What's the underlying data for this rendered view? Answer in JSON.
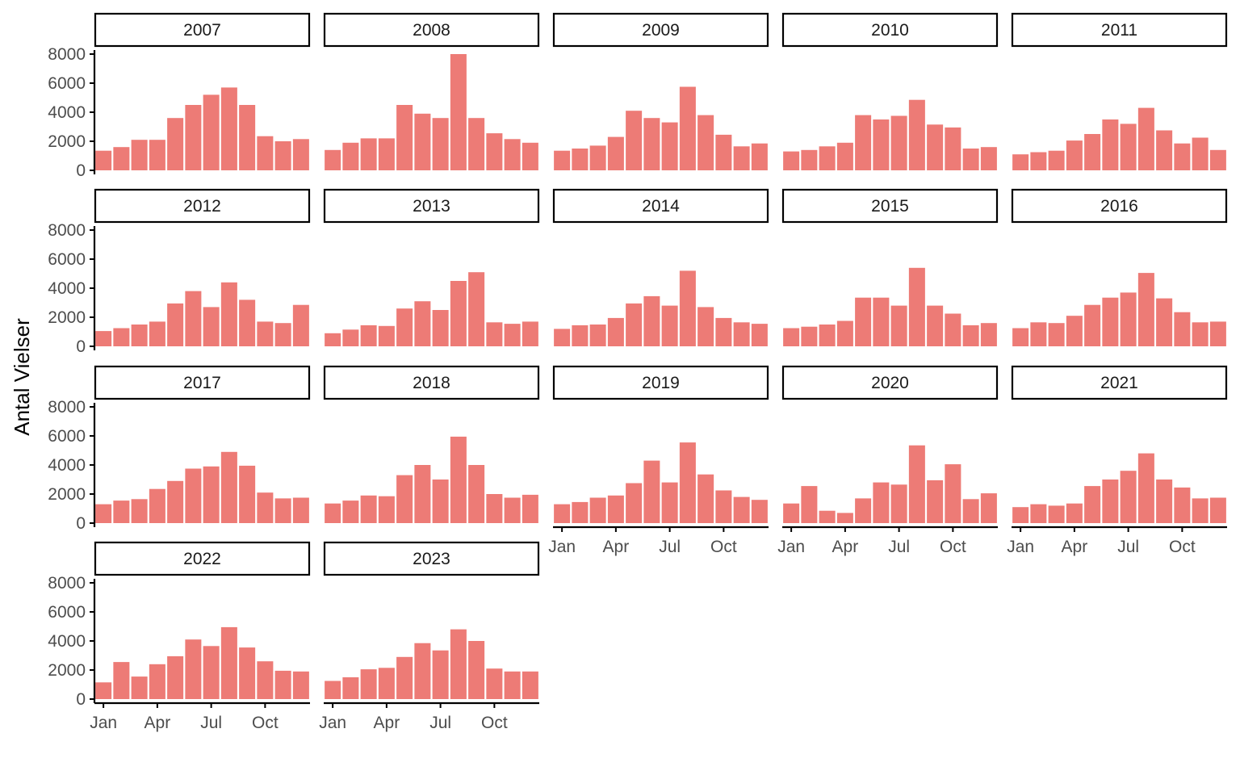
{
  "chart_data": {
    "type": "bar",
    "facet_by": "year",
    "layout": {
      "ncol": 5,
      "nrow": 4
    },
    "ylabel": "Antal Vielser",
    "xlabel": "",
    "ylim": [
      0,
      8000
    ],
    "yticks": [
      0,
      2000,
      4000,
      6000,
      8000
    ],
    "x_tick_labels": [
      "Jan",
      "Apr",
      "Jul",
      "Oct"
    ],
    "x_tick_months": [
      1,
      4,
      7,
      10
    ],
    "grid": false,
    "colors": {
      "bar": "#ED7B76",
      "axis": "#000000"
    },
    "panels": [
      {
        "label": "2007",
        "values": [
          1350,
          1600,
          2100,
          2100,
          3600,
          4500,
          5200,
          5700,
          4500,
          2350,
          2000,
          2150
        ]
      },
      {
        "label": "2008",
        "values": [
          1400,
          1900,
          2200,
          2200,
          4500,
          3900,
          3600,
          8000,
          3600,
          2550,
          2150,
          1900
        ]
      },
      {
        "label": "2009",
        "values": [
          1350,
          1500,
          1700,
          2300,
          4100,
          3600,
          3300,
          5750,
          3800,
          2450,
          1650,
          1850
        ]
      },
      {
        "label": "2010",
        "values": [
          1300,
          1400,
          1650,
          1900,
          3800,
          3500,
          3750,
          4850,
          3150,
          2950,
          1500,
          1600
        ]
      },
      {
        "label": "2011",
        "values": [
          1100,
          1250,
          1350,
          2050,
          2500,
          3500,
          3200,
          4300,
          2750,
          1850,
          2250,
          1400
        ]
      },
      {
        "label": "2012",
        "values": [
          1050,
          1250,
          1500,
          1700,
          2950,
          3800,
          2700,
          4400,
          3200,
          1700,
          1600,
          2850
        ]
      },
      {
        "label": "2013",
        "values": [
          900,
          1150,
          1450,
          1400,
          2600,
          3100,
          2500,
          4500,
          5100,
          1650,
          1550,
          1700
        ]
      },
      {
        "label": "2014",
        "values": [
          1200,
          1450,
          1500,
          1950,
          2950,
          3450,
          2800,
          5200,
          2700,
          1950,
          1650,
          1550
        ]
      },
      {
        "label": "2015",
        "values": [
          1250,
          1350,
          1500,
          1750,
          3350,
          3350,
          2800,
          5400,
          2800,
          2250,
          1450,
          1600
        ]
      },
      {
        "label": "2016",
        "values": [
          1250,
          1650,
          1600,
          2100,
          2850,
          3350,
          3700,
          5050,
          3300,
          2350,
          1650,
          1700
        ]
      },
      {
        "label": "2017",
        "values": [
          1300,
          1550,
          1650,
          2350,
          2900,
          3750,
          3900,
          4900,
          3950,
          2100,
          1700,
          1750
        ]
      },
      {
        "label": "2018",
        "values": [
          1350,
          1550,
          1900,
          1850,
          3300,
          4000,
          3000,
          5950,
          4000,
          2000,
          1750,
          1950
        ]
      },
      {
        "label": "2019",
        "values": [
          1300,
          1450,
          1750,
          1900,
          2750,
          4300,
          2800,
          5550,
          3350,
          2250,
          1800,
          1600
        ]
      },
      {
        "label": "2020",
        "values": [
          1350,
          2550,
          850,
          700,
          1700,
          2800,
          2650,
          5350,
          2950,
          4050,
          1650,
          2050
        ]
      },
      {
        "label": "2021",
        "values": [
          1100,
          1300,
          1200,
          1350,
          2550,
          3000,
          3600,
          4800,
          3000,
          2450,
          1700,
          1750
        ]
      },
      {
        "label": "2022",
        "values": [
          1150,
          2550,
          1550,
          2400,
          2950,
          4100,
          3650,
          4950,
          3550,
          2600,
          1950,
          1900
        ]
      },
      {
        "label": "2023",
        "values": [
          1250,
          1500,
          2050,
          2150,
          2900,
          3850,
          3350,
          4800,
          4000,
          2100,
          1900,
          1900
        ]
      }
    ]
  }
}
